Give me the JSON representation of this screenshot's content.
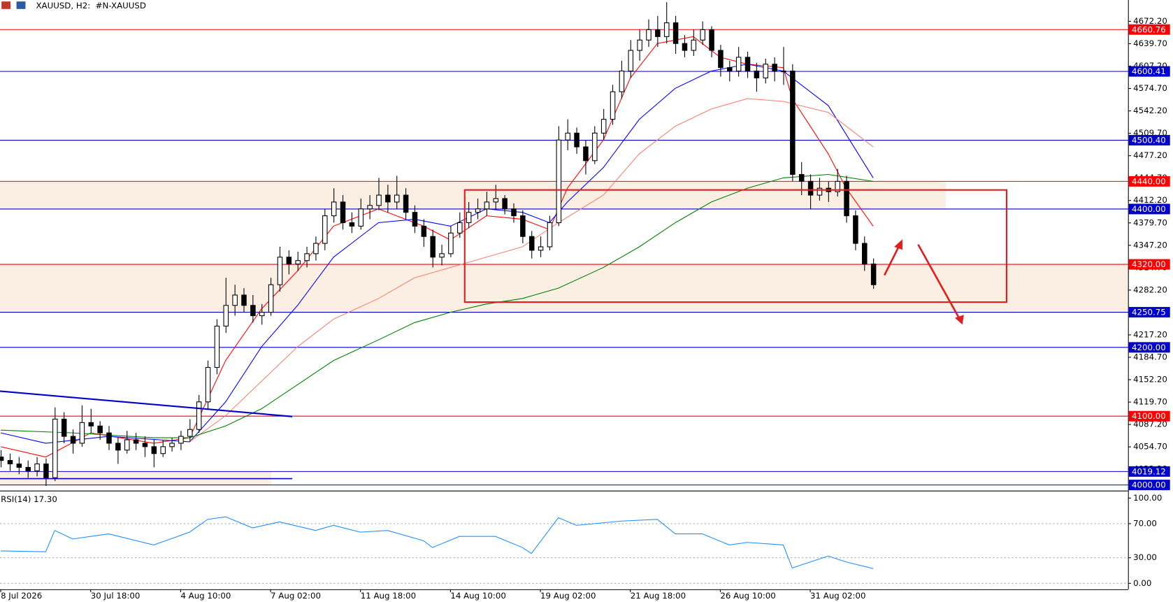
{
  "chart_data": [
    {
      "type": "candlestick",
      "title": "XAUUSD, H2:  #N-XAUUSD",
      "categories": [
        "8 Jul 2026",
        null,
        null,
        null,
        null,
        null,
        null,
        null,
        null,
        null,
        "30 Jul 18:00",
        null,
        null,
        null,
        null,
        null,
        null,
        null,
        null,
        null,
        "4 Aug 10:00",
        null,
        null,
        null,
        null,
        null,
        null,
        null,
        null,
        null,
        "7 Aug 02:00",
        null,
        null,
        null,
        null,
        null,
        null,
        null,
        null,
        null,
        "11 Aug 18:00",
        null,
        null,
        null,
        null,
        null,
        null,
        null,
        null,
        null,
        "14 Aug 10:00",
        null,
        null,
        null,
        null,
        null,
        null,
        null,
        null,
        null,
        "19 Aug 02:00",
        null,
        null,
        null,
        null,
        null,
        null,
        null,
        null,
        null,
        "21 Aug 18:00",
        null,
        null,
        null,
        null,
        null,
        null,
        null,
        null,
        null,
        "26 Aug 10:00",
        null,
        null,
        null,
        null,
        null,
        null,
        null,
        null,
        null,
        "31 Aug 02:00",
        null,
        null,
        null,
        null,
        null,
        null,
        null
      ],
      "candles": [
        [
          4040,
          4050,
          4025,
          4035
        ],
        [
          4035,
          4045,
          4020,
          4030
        ],
        [
          4030,
          4040,
          4015,
          4025
        ],
        [
          4025,
          4035,
          4010,
          4020
        ],
        [
          4020,
          4040,
          4012,
          4030
        ],
        [
          4030,
          4038,
          3998,
          4010
        ],
        [
          4010,
          4112,
          4005,
          4095
        ],
        [
          4095,
          4105,
          4060,
          4070
        ],
        [
          4070,
          4080,
          4045,
          4060
        ],
        [
          4060,
          4115,
          4055,
          4090
        ],
        [
          4090,
          4110,
          4075,
          4085
        ],
        [
          4085,
          4092,
          4065,
          4075
        ],
        [
          4075,
          4085,
          4050,
          4060
        ],
        [
          4060,
          4068,
          4030,
          4050
        ],
        [
          4050,
          4078,
          4045,
          4065
        ],
        [
          4065,
          4075,
          4050,
          4060
        ],
        [
          4060,
          4070,
          4040,
          4055
        ],
        [
          4055,
          4065,
          4025,
          4045
        ],
        [
          4045,
          4065,
          4040,
          4055
        ],
        [
          4055,
          4068,
          4048,
          4060
        ],
        [
          4060,
          4078,
          4050,
          4070
        ],
        [
          4070,
          4095,
          4062,
          4080
        ],
        [
          4080,
          4130,
          4075,
          4120
        ],
        [
          4120,
          4180,
          4110,
          4170
        ],
        [
          4170,
          4240,
          4160,
          4230
        ],
        [
          4230,
          4300,
          4220,
          4260
        ],
        [
          4260,
          4290,
          4245,
          4275
        ],
        [
          4275,
          4285,
          4250,
          4260
        ],
        [
          4260,
          4275,
          4235,
          4245
        ],
        [
          4245,
          4262,
          4232,
          4250
        ],
        [
          4250,
          4300,
          4245,
          4290
        ],
        [
          4290,
          4345,
          4280,
          4330
        ],
        [
          4330,
          4340,
          4305,
          4320
        ],
        [
          4320,
          4338,
          4310,
          4325
        ],
        [
          4325,
          4345,
          4315,
          4335
        ],
        [
          4335,
          4360,
          4325,
          4350
        ],
        [
          4350,
          4400,
          4340,
          4390
        ],
        [
          4390,
          4430,
          4380,
          4410
        ],
        [
          4410,
          4420,
          4370,
          4380
        ],
        [
          4380,
          4395,
          4365,
          4375
        ],
        [
          4375,
          4415,
          4370,
          4400
        ],
        [
          4400,
          4420,
          4385,
          4405
        ],
        [
          4405,
          4445,
          4398,
          4420
        ],
        [
          4420,
          4435,
          4395,
          4410
        ],
        [
          4410,
          4448,
          4400,
          4420
        ],
        [
          4420,
          4430,
          4385,
          4395
        ],
        [
          4395,
          4405,
          4365,
          4375
        ],
        [
          4375,
          4385,
          4345,
          4360
        ],
        [
          4360,
          4370,
          4315,
          4330
        ],
        [
          4330,
          4348,
          4318,
          4335
        ],
        [
          4335,
          4375,
          4330,
          4365
        ],
        [
          4365,
          4395,
          4358,
          4380
        ],
        [
          4380,
          4410,
          4372,
          4395
        ],
        [
          4395,
          4415,
          4385,
          4400
        ],
        [
          4400,
          4425,
          4390,
          4410
        ],
        [
          4410,
          4435,
          4400,
          4415
        ],
        [
          4415,
          4420,
          4392,
          4400
        ],
        [
          4400,
          4408,
          4380,
          4390
        ],
        [
          4390,
          4398,
          4350,
          4360
        ],
        [
          4360,
          4368,
          4328,
          4340
        ],
        [
          4340,
          4360,
          4330,
          4345
        ],
        [
          4345,
          4390,
          4340,
          4380
        ],
        [
          4380,
          4520,
          4375,
          4500
        ],
        [
          4500,
          4530,
          4485,
          4510
        ],
        [
          4510,
          4518,
          4480,
          4490
        ],
        [
          4490,
          4500,
          4450,
          4470
        ],
        [
          4470,
          4520,
          4465,
          4510
        ],
        [
          4510,
          4545,
          4500,
          4530
        ],
        [
          4530,
          4580,
          4522,
          4570
        ],
        [
          4570,
          4615,
          4560,
          4600
        ],
        [
          4600,
          4645,
          4590,
          4630
        ],
        [
          4630,
          4660,
          4615,
          4645
        ],
        [
          4645,
          4675,
          4635,
          4660
        ],
        [
          4660,
          4680,
          4635,
          4650
        ],
        [
          4650,
          4700,
          4640,
          4670
        ],
        [
          4670,
          4680,
          4625,
          4640
        ],
        [
          4640,
          4652,
          4620,
          4630
        ],
        [
          4630,
          4660,
          4622,
          4645
        ],
        [
          4645,
          4672,
          4638,
          4660
        ],
        [
          4660,
          4665,
          4620,
          4630
        ],
        [
          4630,
          4638,
          4592,
          4605
        ],
        [
          4605,
          4615,
          4585,
          4600
        ],
        [
          4600,
          4635,
          4592,
          4620
        ],
        [
          4620,
          4628,
          4590,
          4600
        ],
        [
          4600,
          4612,
          4570,
          4590
        ],
        [
          4590,
          4618,
          4582,
          4610
        ],
        [
          4610,
          4620,
          4585,
          4600
        ],
        [
          4600,
          4635,
          4580,
          4600
        ],
        [
          4600,
          4610,
          4440,
          4450
        ],
        [
          4450,
          4468,
          4420,
          4440
        ],
        [
          4440,
          4450,
          4400,
          4420
        ],
        [
          4420,
          4445,
          4412,
          4430
        ],
        [
          4430,
          4440,
          4410,
          4425
        ],
        [
          4425,
          4458,
          4418,
          4440
        ],
        [
          4440,
          4448,
          4380,
          4390
        ],
        [
          4390,
          4398,
          4340,
          4350
        ],
        [
          4350,
          4360,
          4310,
          4320
        ],
        [
          4320,
          4328,
          4284,
          4290
        ]
      ],
      "series": [
        {
          "color": "#ff0000",
          "x": [
            0,
            5,
            10,
            17,
            21,
            25,
            29,
            33,
            37,
            42,
            47,
            50,
            54,
            58,
            61,
            63,
            67,
            70,
            73,
            77,
            80,
            83,
            87,
            88,
            92,
            94,
            97
          ],
          "values": [
            4055,
            4040,
            4075,
            4060,
            4068,
            4180,
            4255,
            4310,
            4375,
            4400,
            4375,
            4355,
            4390,
            4385,
            4370,
            4430,
            4500,
            4590,
            4640,
            4650,
            4620,
            4610,
            4605,
            4560,
            4480,
            4430,
            4375
          ]
        },
        {
          "color": "#0000ff",
          "x": [
            0,
            5,
            12,
            21,
            25,
            29,
            33,
            37,
            42,
            46,
            50,
            54,
            58,
            61,
            63,
            67,
            71,
            75,
            79,
            83,
            87,
            92,
            97
          ],
          "values": [
            4075,
            4060,
            4070,
            4062,
            4120,
            4200,
            4260,
            4330,
            4380,
            4385,
            4375,
            4400,
            4395,
            4380,
            4410,
            4460,
            4530,
            4575,
            4600,
            4610,
            4600,
            4550,
            4445
          ]
        },
        {
          "color": "#fa8072",
          "x": [
            21,
            25,
            29,
            33,
            37,
            42,
            46,
            50,
            54,
            58,
            62,
            67,
            71,
            75,
            79,
            83,
            87,
            92,
            97
          ],
          "values": [
            4062,
            4100,
            4150,
            4200,
            4240,
            4270,
            4300,
            4315,
            4330,
            4345,
            4380,
            4420,
            4480,
            4520,
            4545,
            4560,
            4556,
            4540,
            4490
          ]
        },
        {
          "color": "#008000",
          "x": [
            0,
            8,
            17,
            21,
            25,
            29,
            33,
            37,
            42,
            46,
            50,
            54,
            58,
            62,
            67,
            71,
            75,
            79,
            83,
            87,
            92,
            97
          ],
          "values": [
            4079,
            4075,
            4068,
            4068,
            4085,
            4110,
            4145,
            4180,
            4210,
            4235,
            4250,
            4262,
            4270,
            4285,
            4315,
            4345,
            4380,
            4410,
            4430,
            4445,
            4450,
            4440
          ]
        }
      ],
      "ylim": [
        3992.4,
        4703.1
      ],
      "yticks": [
        {
          "value": 4672.2,
          "label": "4672.20"
        },
        {
          "value": 4639.7,
          "label": "4639.70"
        },
        {
          "value": 4607.2,
          "label": "4607.20"
        },
        {
          "value": 4574.7,
          "label": "4574.70"
        },
        {
          "value": 4542.2,
          "label": "4542.20"
        },
        {
          "value": 4509.7,
          "label": "4509.70"
        },
        {
          "value": 4477.2,
          "label": "4477.20"
        },
        {
          "value": 4444.7,
          "label": "4444.70"
        },
        {
          "value": 4412.2,
          "label": "4412.20"
        },
        {
          "value": 4379.7,
          "label": "4379.70"
        },
        {
          "value": 4347.2,
          "label": "4347.20"
        },
        {
          "value": 4314.7,
          "label": "4314.70"
        },
        {
          "value": 4282.2,
          "label": "4282.20"
        },
        {
          "value": 4249.7,
          "label": "4249.70"
        },
        {
          "value": 4217.2,
          "label": "4217.20"
        },
        {
          "value": 4184.7,
          "label": "4184.70"
        },
        {
          "value": 4152.2,
          "label": "4152.20"
        },
        {
          "value": 4119.7,
          "label": "4119.70"
        },
        {
          "value": 4087.2,
          "label": "4087.20"
        },
        {
          "value": 4054.7,
          "label": "4054.70"
        },
        {
          "value": 4022.2,
          "label": "4022.20"
        }
      ],
      "levels": [
        {
          "value": 4660.76,
          "label": "4660.76",
          "color": "#ff0000"
        },
        {
          "value": 4600.41,
          "label": "4600.41",
          "color": "#0000cd"
        },
        {
          "value": 4500.4,
          "label": "4500.40",
          "color": "#0000cd"
        },
        {
          "value": 4440,
          "label": "4440.00",
          "color": "#ff0000"
        },
        {
          "value": 4400,
          "label": "4400.00",
          "color": "#0000cd"
        },
        {
          "value": 4320,
          "label": "4320.00",
          "color": "#ff0000"
        },
        {
          "value": 4250.75,
          "label": "4250.75",
          "color": "#0000cd"
        },
        {
          "value": 4200,
          "label": "4200.00",
          "color": "#0000cd"
        },
        {
          "value": 4100,
          "label": "4100.00",
          "color": "#ff0000"
        },
        {
          "value": 4019.12,
          "label": "4019.12",
          "color": "#0000cd"
        },
        {
          "value": 4000,
          "label": "4000.00",
          "color": "#0000cd"
        }
      ],
      "zones": [
        {
          "from": 4400,
          "to": 4440,
          "color": "#fbeee3"
        },
        {
          "from": 4250.75,
          "to": 4320,
          "color": "#fbeee3"
        },
        {
          "from": 4000,
          "to": 4019.12,
          "color": "#fbeee3"
        }
      ]
    },
    {
      "type": "line",
      "title": "RSI(14) 17.30",
      "color": "#1e90ff",
      "x": [
        0,
        5,
        6,
        8,
        12,
        17,
        21,
        23,
        25,
        28,
        31,
        35,
        37,
        40,
        43,
        47,
        48,
        51,
        55,
        58,
        59,
        62,
        64,
        69,
        73,
        75,
        78,
        81,
        83,
        87,
        88,
        90,
        92,
        94,
        97
      ],
      "values": [
        38,
        37,
        62,
        52,
        58,
        45,
        60,
        75,
        78,
        65,
        72,
        62,
        68,
        60,
        62,
        50,
        42,
        55,
        55,
        42,
        35,
        77,
        68,
        73,
        75,
        58,
        58,
        45,
        48,
        45,
        18,
        25,
        32,
        25,
        17.3
      ],
      "ylim": [
        -7,
        107.9
      ],
      "yticks": [
        {
          "value": 100,
          "label": "100.00"
        },
        {
          "value": 70,
          "label": "70.00"
        },
        {
          "value": 30,
          "label": "30.00"
        },
        {
          "value": 0,
          "label": "0.00"
        }
      ]
    }
  ]
}
